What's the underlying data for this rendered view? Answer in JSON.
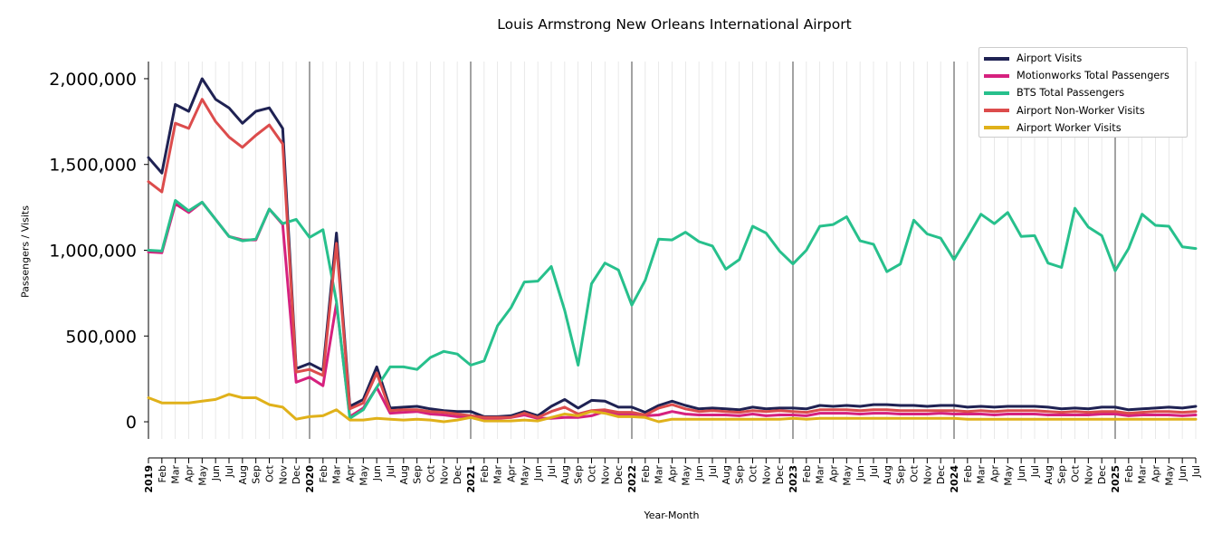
{
  "chart_data": {
    "type": "line",
    "title": "Louis Armstrong New Orleans International Airport",
    "xlabel": "Year-Month",
    "ylabel": "Passengers / Visits",
    "ylim": [
      -100000,
      2100000
    ],
    "yticks": [
      0,
      500000,
      1000000,
      1500000,
      2000000
    ],
    "ytick_labels": [
      "0",
      "500,000",
      "1,000,000",
      "1,500,000",
      "2,000,000"
    ],
    "grid": "vertical lines at each month; darker lines at each January",
    "legend_position": "top-right",
    "x": [
      "2019",
      "Feb",
      "Mar",
      "Apr",
      "May",
      "Jun",
      "Jul",
      "Aug",
      "Sep",
      "Oct",
      "Nov",
      "Dec",
      "2020",
      "Feb",
      "Mar",
      "Apr",
      "May",
      "Jun",
      "Jul",
      "Aug",
      "Sep",
      "Oct",
      "Nov",
      "Dec",
      "2021",
      "Feb",
      "Mar",
      "Apr",
      "May",
      "Jun",
      "Jul",
      "Aug",
      "Sep",
      "Oct",
      "Nov",
      "Dec",
      "2022",
      "Feb",
      "Mar",
      "Apr",
      "May",
      "Jun",
      "Jul",
      "Aug",
      "Sep",
      "Oct",
      "Nov",
      "Dec",
      "2023",
      "Feb",
      "Mar",
      "Apr",
      "May",
      "Jun",
      "Jul",
      "Aug",
      "Sep",
      "Oct",
      "Nov",
      "Dec",
      "2024",
      "Feb",
      "Mar",
      "Apr",
      "May",
      "Jun",
      "Jul",
      "Aug",
      "Sep",
      "Oct",
      "Nov",
      "Dec",
      "2025",
      "Feb",
      "Mar",
      "Apr",
      "May",
      "Jun",
      "Jul"
    ],
    "series": [
      {
        "name": "Airport Visits",
        "color": "#1f2253",
        "values": [
          1540000,
          1450000,
          1850000,
          1810000,
          2000000,
          1880000,
          1830000,
          1740000,
          1810000,
          1830000,
          1710000,
          310000,
          340000,
          300000,
          1100000,
          90000,
          130000,
          320000,
          80000,
          85000,
          90000,
          75000,
          65000,
          60000,
          60000,
          30000,
          30000,
          35000,
          60000,
          35000,
          90000,
          130000,
          80000,
          125000,
          120000,
          85000,
          85000,
          55000,
          95000,
          120000,
          95000,
          75000,
          80000,
          75000,
          70000,
          85000,
          75000,
          80000,
          80000,
          75000,
          95000,
          90000,
          95000,
          90000,
          100000,
          100000,
          95000,
          95000,
          90000,
          95000,
          95000,
          85000,
          90000,
          85000,
          90000,
          90000,
          90000,
          85000,
          75000,
          80000,
          75000,
          85000,
          85000,
          70000,
          75000,
          80000,
          85000,
          80000,
          90000
        ]
      },
      {
        "name": "Motionworks Total Passengers",
        "color": "#d6217e",
        "values": [
          990000,
          985000,
          1270000,
          1220000,
          1280000,
          1180000,
          1080000,
          1060000,
          1060000,
          1240000,
          1150000,
          230000,
          260000,
          210000,
          690000,
          30000,
          80000,
          200000,
          50000,
          55000,
          60000,
          45000,
          40000,
          30000,
          30000,
          20000,
          20000,
          25000,
          40000,
          20000,
          20000,
          25000,
          25000,
          35000,
          60000,
          45000,
          40000,
          35000,
          40000,
          60000,
          45000,
          40000,
          40000,
          40000,
          35000,
          45000,
          35000,
          40000,
          40000,
          35000,
          50000,
          50000,
          50000,
          45000,
          50000,
          50000,
          45000,
          45000,
          45000,
          50000,
          45000,
          45000,
          45000,
          40000,
          45000,
          45000,
          45000,
          40000,
          40000,
          40000,
          40000,
          45000,
          45000,
          35000,
          40000,
          40000,
          40000,
          35000,
          40000
        ]
      },
      {
        "name": "BTS Total Passengers",
        "color": "#27c08c",
        "values": [
          1000000,
          995000,
          1290000,
          1230000,
          1280000,
          1180000,
          1080000,
          1055000,
          1065000,
          1240000,
          1155000,
          1180000,
          1075000,
          1120000,
          700000,
          20000,
          70000,
          200000,
          320000,
          320000,
          305000,
          375000,
          410000,
          395000,
          330000,
          355000,
          560000,
          665000,
          815000,
          820000,
          905000,
          650000,
          330000,
          805000,
          925000,
          885000,
          680000,
          825000,
          1065000,
          1060000,
          1105000,
          1050000,
          1025000,
          890000,
          945000,
          1140000,
          1100000,
          995000,
          920000,
          1000000,
          1140000,
          1150000,
          1195000,
          1055000,
          1035000,
          875000,
          920000,
          1175000,
          1095000,
          1070000,
          945000,
          1075000,
          1210000,
          1155000,
          1220000,
          1080000,
          1085000,
          925000,
          900000,
          1245000,
          1135000,
          1085000,
          880000,
          1010000,
          1210000,
          1145000,
          1140000,
          1020000,
          1010000
        ]
      },
      {
        "name": "Airport Non-Worker Visits",
        "color": "#dc4c4c",
        "values": [
          1400000,
          1340000,
          1740000,
          1710000,
          1880000,
          1750000,
          1660000,
          1600000,
          1670000,
          1730000,
          1620000,
          290000,
          305000,
          270000,
          1040000,
          75000,
          110000,
          285000,
          65000,
          70000,
          70000,
          60000,
          55000,
          45000,
          35000,
          25000,
          25000,
          25000,
          50000,
          25000,
          60000,
          85000,
          45000,
          65000,
          70000,
          55000,
          55000,
          40000,
          80000,
          100000,
          75000,
          60000,
          65000,
          60000,
          55000,
          65000,
          60000,
          65000,
          60000,
          55000,
          70000,
          70000,
          70000,
          65000,
          70000,
          70000,
          65000,
          65000,
          65000,
          65000,
          65000,
          60000,
          65000,
          60000,
          65000,
          65000,
          65000,
          60000,
          55000,
          60000,
          55000,
          60000,
          60000,
          50000,
          55000,
          60000,
          60000,
          55000,
          60000
        ]
      },
      {
        "name": "Airport Worker Visits",
        "color": "#e0b11a",
        "values": [
          140000,
          110000,
          110000,
          110000,
          120000,
          130000,
          160000,
          140000,
          140000,
          100000,
          85000,
          15000,
          30000,
          35000,
          70000,
          10000,
          10000,
          20000,
          15000,
          10000,
          15000,
          10000,
          0,
          10000,
          25000,
          5000,
          5000,
          5000,
          10000,
          5000,
          25000,
          45000,
          35000,
          60000,
          50000,
          30000,
          30000,
          25000,
          0,
          15000,
          15000,
          15000,
          15000,
          15000,
          15000,
          15000,
          15000,
          15000,
          20000,
          15000,
          20000,
          20000,
          20000,
          20000,
          20000,
          20000,
          20000,
          20000,
          20000,
          20000,
          20000,
          15000,
          15000,
          15000,
          15000,
          15000,
          15000,
          15000,
          15000,
          15000,
          15000,
          15000,
          15000,
          15000,
          15000,
          15000,
          15000,
          15000,
          15000
        ]
      }
    ]
  }
}
